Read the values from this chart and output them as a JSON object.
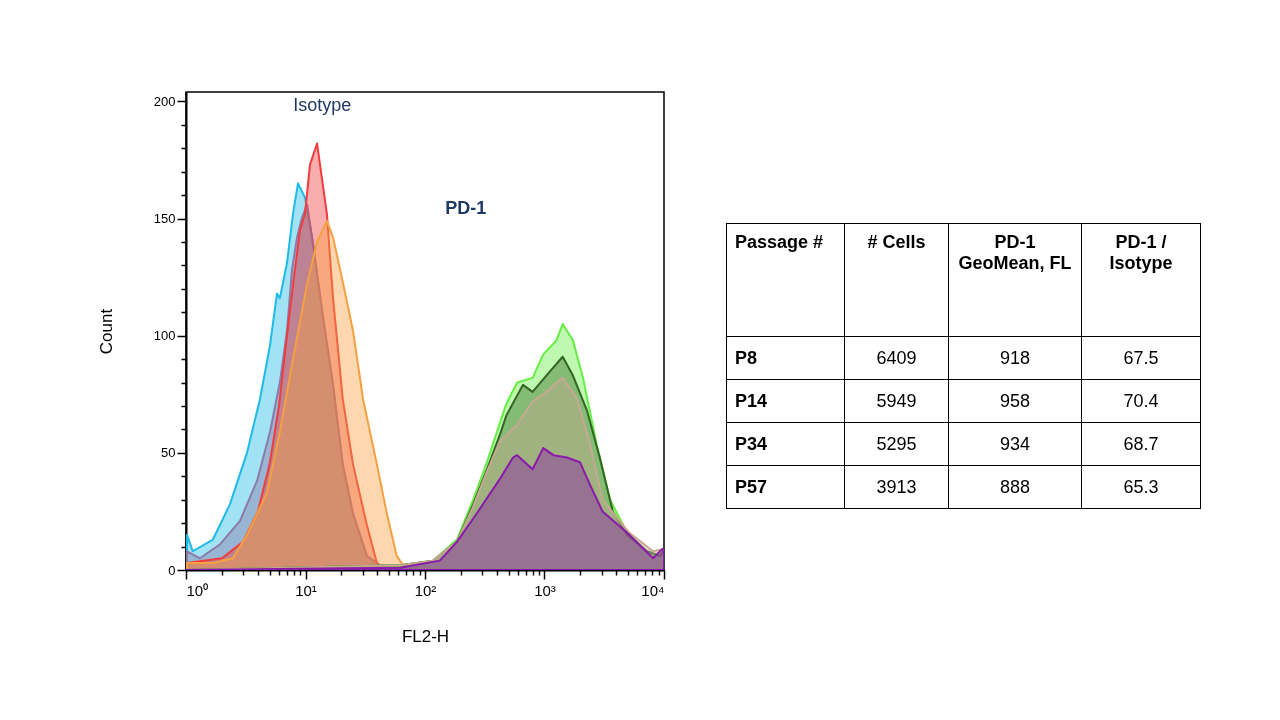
{
  "chart_data": [
    {
      "type": "area",
      "xlabel": "FL2-H",
      "ylabel": "Count",
      "log": "x",
      "grid": false,
      "xlim": [
        1,
        10000
      ],
      "ylim": [
        0,
        204
      ],
      "xticks": [
        {
          "value": 1,
          "label": "10⁰"
        },
        {
          "value": 2,
          "label": null
        },
        {
          "value": 3,
          "label": null
        },
        {
          "value": 4,
          "label": null
        },
        {
          "value": 5,
          "label": null
        },
        {
          "value": 6,
          "label": null
        },
        {
          "value": 7,
          "label": null
        },
        {
          "value": 8,
          "label": null
        },
        {
          "value": 9,
          "label": null
        },
        {
          "value": 10,
          "label": "10¹"
        },
        {
          "value": 20,
          "label": null
        },
        {
          "value": 30,
          "label": null
        },
        {
          "value": 40,
          "label": null
        },
        {
          "value": 50,
          "label": null
        },
        {
          "value": 60,
          "label": null
        },
        {
          "value": 70,
          "label": null
        },
        {
          "value": 80,
          "label": null
        },
        {
          "value": 90,
          "label": null
        },
        {
          "value": 100,
          "label": "10²"
        },
        {
          "value": 200,
          "label": null
        },
        {
          "value": 300,
          "label": null
        },
        {
          "value": 400,
          "label": null
        },
        {
          "value": 500,
          "label": null
        },
        {
          "value": 600,
          "label": null
        },
        {
          "value": 700,
          "label": null
        },
        {
          "value": 800,
          "label": null
        },
        {
          "value": 900,
          "label": null
        },
        {
          "value": 1000,
          "label": "10³"
        },
        {
          "value": 2000,
          "label": null
        },
        {
          "value": 3000,
          "label": null
        },
        {
          "value": 4000,
          "label": null
        },
        {
          "value": 5000,
          "label": null
        },
        {
          "value": 6000,
          "label": null
        },
        {
          "value": 7000,
          "label": null
        },
        {
          "value": 8000,
          "label": null
        },
        {
          "value": 9000,
          "label": null
        },
        {
          "value": 10000,
          "label": "10⁴"
        }
      ],
      "yticks": [
        0,
        {
          "value": 10,
          "label": null
        },
        {
          "value": 20,
          "label": null
        },
        {
          "value": 30,
          "label": null
        },
        {
          "value": 40,
          "label": null
        },
        50,
        {
          "value": 60,
          "label": null
        },
        {
          "value": 70,
          "label": null
        },
        {
          "value": 80,
          "label": null
        },
        {
          "value": 90,
          "label": null
        },
        100,
        {
          "value": 110,
          "label": null
        },
        {
          "value": 120,
          "label": null
        },
        {
          "value": 130,
          "label": null
        },
        {
          "value": 140,
          "label": null
        },
        150,
        {
          "value": 160,
          "label": null
        },
        {
          "value": 170,
          "label": null
        },
        {
          "value": 180,
          "label": null
        },
        {
          "value": 190,
          "label": null
        },
        200
      ],
      "annotations": [
        "Isotype",
        "PD-1"
      ],
      "series": [
        {
          "color": "#1ebbe8",
          "x": [
            1.02,
            1.14,
            1.68,
            2.33,
            3.24,
            4.16,
            5.05,
            5.77,
            6.1,
            7.0,
            7.86,
            8.65,
            9.9,
            11.5,
            14,
            17,
            20.5,
            25,
            32.7,
            42,
            79,
            10000
          ],
          "values": [
            15,
            8,
            13,
            28,
            50,
            73,
            96,
            118,
            116,
            131,
            152,
            165,
            159,
            140,
            108,
            79,
            45,
            24,
            6,
            2,
            0,
            0
          ]
        },
        {
          "color": "#8c7aa8",
          "x": [
            1.02,
            1.31,
            1.93,
            2.83,
            3.93,
            5.05,
            6.1,
            7.0,
            7.7,
            8.5,
            9.3,
            10.3,
            11.5,
            14,
            17,
            20.5,
            25,
            32.7,
            42,
            79,
            10000
          ],
          "values": [
            8,
            5,
            11,
            21,
            38,
            59,
            80,
            102,
            128,
            142,
            150,
            156,
            140,
            108,
            79,
            45,
            24,
            6,
            2,
            0,
            0
          ]
        },
        {
          "color": "#f03c3c",
          "x": [
            1.02,
            2,
            3,
            4,
            5,
            6,
            7,
            8,
            9,
            9.9,
            10.9,
            12.5,
            15.1,
            17,
            20.5,
            25,
            32.7,
            39.6,
            48,
            10000
          ],
          "values": [
            3,
            5,
            12,
            25,
            45,
            70,
            100,
            125,
            145,
            152,
            173,
            182,
            152,
            116,
            73,
            45,
            19,
            3,
            0,
            0
          ]
        },
        {
          "color": "#f7a040",
          "x": [
            1.02,
            1.68,
            2.47,
            3.24,
            4.76,
            6.1,
            7.86,
            10.3,
            12.5,
            15.1,
            17,
            20.5,
            25,
            30.3,
            39.6,
            48,
            58,
            70,
            10000
          ],
          "values": [
            3,
            3,
            5,
            15,
            33,
            59,
            90,
            122,
            140,
            149,
            142,
            123,
            102,
            73,
            45,
            24,
            6,
            0,
            0
          ]
        },
        {
          "color": "#66ee44",
          "x": [
            1,
            62,
            117,
            185,
            253,
            330,
            425,
            480,
            590,
            795,
            975,
            1260,
            1420,
            1730,
            2100,
            2750,
            3540,
            4900,
            7200,
            9300,
            10000
          ],
          "values": [
            0,
            2,
            4,
            13,
            30,
            46,
            63,
            71,
            80,
            82,
            92,
            98,
            105,
            98,
            82,
            53,
            30,
            16,
            8,
            6,
            9
          ]
        },
        {
          "color": "#336622",
          "x": [
            1,
            62,
            117,
            185,
            253,
            330,
            425,
            480,
            660,
            795,
            1120,
            1420,
            1730,
            2270,
            2900,
            3730,
            4900,
            7200,
            9300,
            10000
          ],
          "values": [
            0,
            2,
            4,
            12,
            28,
            43,
            58,
            66,
            79,
            76,
            85,
            91,
            83,
            68,
            48,
            25,
            15,
            8,
            6,
            9
          ]
        },
        {
          "color": "#c8a890",
          "x": [
            1,
            62,
            117,
            185,
            253,
            330,
            425,
            590,
            795,
            975,
            1420,
            1880,
            2420,
            3060,
            5100,
            8100,
            10000
          ],
          "values": [
            0,
            2,
            4,
            12,
            27,
            42,
            55,
            62,
            72,
            75,
            82,
            73,
            53,
            30,
            16,
            8,
            9
          ]
        },
        {
          "color": "#8a1aaa",
          "x": [
            1,
            62,
            133,
            185,
            270,
            425,
            545,
            590,
            795,
            975,
            1190,
            1540,
            1980,
            2420,
            3060,
            4900,
            8100,
            9700,
            10000
          ],
          "values": [
            0,
            1,
            4,
            12,
            24,
            39,
            48,
            49,
            43,
            52,
            49,
            48,
            46,
            36,
            25,
            16,
            5,
            9,
            9
          ]
        }
      ]
    },
    {
      "type": "other",
      "categories": [
        "Passage #",
        "# Cells",
        "PD-1 GeoMean, FL",
        "PD-1 / Isotype"
      ],
      "y_categories": [
        "P8",
        "P14",
        "P34",
        "P57"
      ],
      "cell_labels": [
        [
          "6409",
          "918",
          "67.5"
        ],
        [
          "5949",
          "958",
          "70.4"
        ],
        [
          "5295",
          "934",
          "68.7"
        ],
        [
          "3913",
          "888",
          "65.3"
        ]
      ]
    }
  ]
}
